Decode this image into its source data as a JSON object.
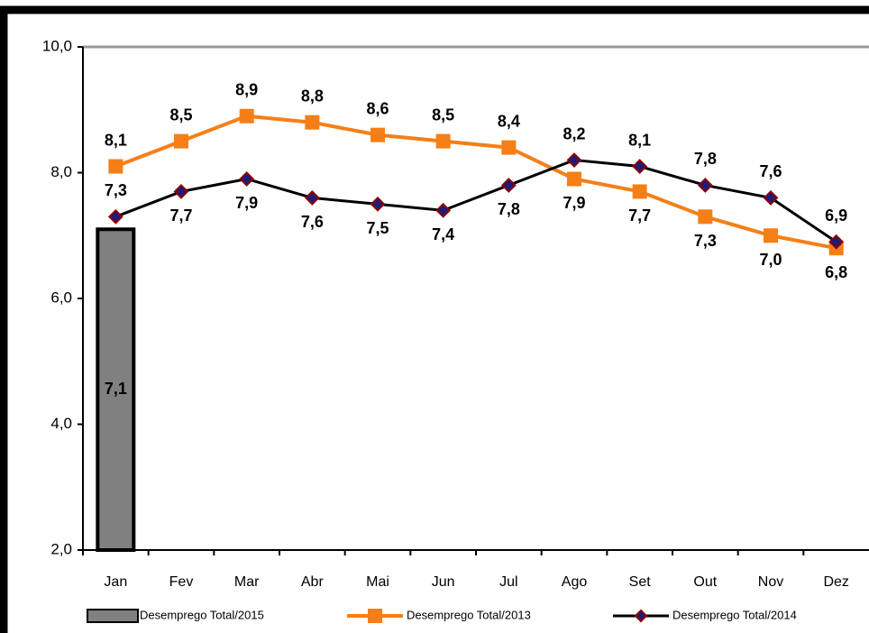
{
  "chart_data": {
    "type": "combo",
    "categories": [
      "Jan",
      "Fev",
      "Mar",
      "Abr",
      "Mai",
      "Jun",
      "Jul",
      "Ago",
      "Set",
      "Out",
      "Nov",
      "Dez"
    ],
    "series": [
      {
        "name": "Desemprego Total/2015",
        "type": "bar",
        "color": "#808080",
        "values": [
          7.1,
          null,
          null,
          null,
          null,
          null,
          null,
          null,
          null,
          null,
          null,
          null
        ],
        "value_labels": [
          "7,1",
          null,
          null,
          null,
          null,
          null,
          null,
          null,
          null,
          null,
          null,
          null
        ]
      },
      {
        "name": "Desemprego Total/2013",
        "type": "line",
        "color": "#f57f17",
        "marker": "square",
        "values": [
          8.1,
          8.5,
          8.9,
          8.8,
          8.6,
          8.5,
          8.4,
          7.9,
          7.7,
          7.3,
          7.0,
          6.8
        ],
        "value_labels": [
          "8,1",
          "8,5",
          "8,9",
          "8,8",
          "8,6",
          "8,5",
          "8,4",
          "7,9",
          "7,7",
          "7,3",
          "7,0",
          "6,8"
        ]
      },
      {
        "name": "Desemprego Total/2014",
        "type": "line",
        "color": "#000000",
        "marker": "diamond",
        "values": [
          7.3,
          7.7,
          7.9,
          7.6,
          7.5,
          7.4,
          7.8,
          8.2,
          8.1,
          7.8,
          7.6,
          6.9
        ],
        "value_labels": [
          "7,3",
          "7,7",
          "7,9",
          "7,6",
          "7,5",
          "7,4",
          "7,8",
          "8,2",
          "8,1",
          "7,8",
          "7,6",
          "6,9"
        ]
      }
    ],
    "ylim": [
      2,
      10
    ],
    "yticks": [
      {
        "value": 2,
        "label": "2,0"
      },
      {
        "value": 4,
        "label": "4,0"
      },
      {
        "value": 6,
        "label": "6,0"
      },
      {
        "value": 8,
        "label": "8,0"
      },
      {
        "value": 10,
        "label": "10,0"
      }
    ]
  }
}
